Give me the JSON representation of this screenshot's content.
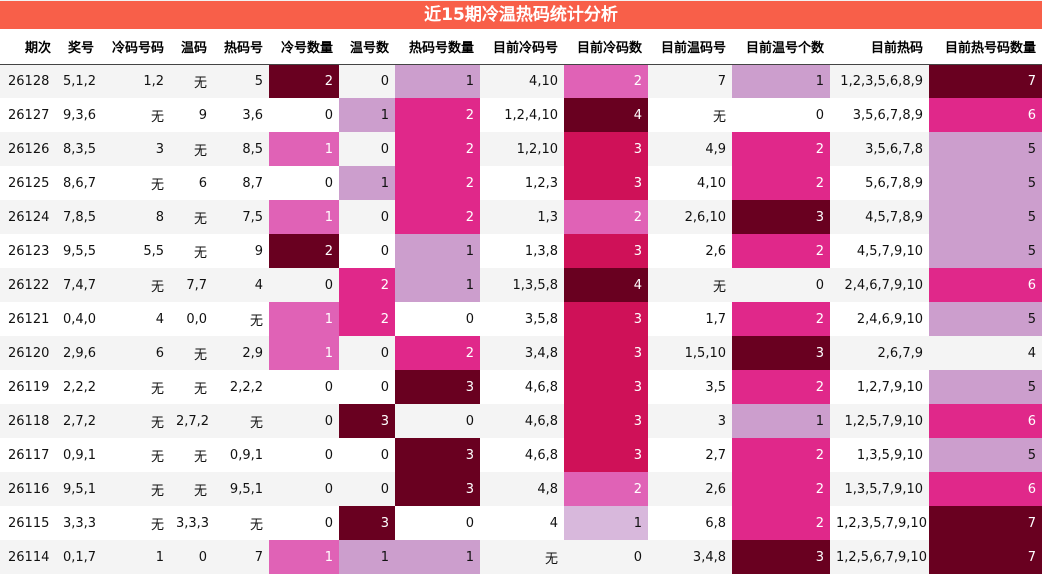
{
  "title": "近15期冷温热码统计分析",
  "colors": {
    "0": "#f7f3f8",
    "1": "#e062b6",
    "2": "#e0288a",
    "3": "#cf1158",
    "4": "#690020",
    "3hi": "#690020",
    "lo": "#d8b8dc",
    "mid": "#cc9ecd"
  },
  "columns": [
    "期次",
    "奖号",
    "冷码号码",
    "温码",
    "热码号",
    "冷号数量",
    "温号数",
    "热码号数量",
    "目前冷码号",
    "目前冷码数",
    "目前温码号",
    "目前温号个数",
    "目前热码",
    "目前热号码数量"
  ],
  "rows": [
    {
      "period": "26128",
      "draw": "5,1,2",
      "cold": "1,2",
      "warm": "无",
      "hot": "5",
      "cold_n": 2,
      "warm_n": 0,
      "hot_n": 1,
      "cur_cold": "4,10",
      "cur_cold_n": 2,
      "cur_warm": "7",
      "cur_warm_n": 1,
      "cur_hot": "1,2,3,5,6,8,9",
      "cur_hot_n": 7
    },
    {
      "period": "26127",
      "draw": "9,3,6",
      "cold": "无",
      "warm": "9",
      "hot": "3,6",
      "cold_n": 0,
      "warm_n": 1,
      "hot_n": 2,
      "cur_cold": "1,2,4,10",
      "cur_cold_n": 4,
      "cur_warm": "无",
      "cur_warm_n": 0,
      "cur_hot": "3,5,6,7,8,9",
      "cur_hot_n": 6
    },
    {
      "period": "26126",
      "draw": "8,3,5",
      "cold": "3",
      "warm": "无",
      "hot": "8,5",
      "cold_n": 1,
      "warm_n": 0,
      "hot_n": 2,
      "cur_cold": "1,2,10",
      "cur_cold_n": 3,
      "cur_warm": "4,9",
      "cur_warm_n": 2,
      "cur_hot": "3,5,6,7,8",
      "cur_hot_n": 5
    },
    {
      "period": "26125",
      "draw": "8,6,7",
      "cold": "无",
      "warm": "6",
      "hot": "8,7",
      "cold_n": 0,
      "warm_n": 1,
      "hot_n": 2,
      "cur_cold": "1,2,3",
      "cur_cold_n": 3,
      "cur_warm": "4,10",
      "cur_warm_n": 2,
      "cur_hot": "5,6,7,8,9",
      "cur_hot_n": 5
    },
    {
      "period": "26124",
      "draw": "7,8,5",
      "cold": "8",
      "warm": "无",
      "hot": "7,5",
      "cold_n": 1,
      "warm_n": 0,
      "hot_n": 2,
      "cur_cold": "1,3",
      "cur_cold_n": 2,
      "cur_warm": "2,6,10",
      "cur_warm_n": 3,
      "cur_hot": "4,5,7,8,9",
      "cur_hot_n": 5
    },
    {
      "period": "26123",
      "draw": "9,5,5",
      "cold": "5,5",
      "warm": "无",
      "hot": "9",
      "cold_n": 2,
      "warm_n": 0,
      "hot_n": 1,
      "cur_cold": "1,3,8",
      "cur_cold_n": 3,
      "cur_warm": "2,6",
      "cur_warm_n": 2,
      "cur_hot": "4,5,7,9,10",
      "cur_hot_n": 5
    },
    {
      "period": "26122",
      "draw": "7,4,7",
      "cold": "无",
      "warm": "7,7",
      "hot": "4",
      "cold_n": 0,
      "warm_n": 2,
      "hot_n": 1,
      "cur_cold": "1,3,5,8",
      "cur_cold_n": 4,
      "cur_warm": "无",
      "cur_warm_n": 0,
      "cur_hot": "2,4,6,7,9,10",
      "cur_hot_n": 6
    },
    {
      "period": "26121",
      "draw": "0,4,0",
      "cold": "4",
      "warm": "0,0",
      "hot": "无",
      "cold_n": 1,
      "warm_n": 2,
      "hot_n": 0,
      "cur_cold": "3,5,8",
      "cur_cold_n": 3,
      "cur_warm": "1,7",
      "cur_warm_n": 2,
      "cur_hot": "2,4,6,9,10",
      "cur_hot_n": 5
    },
    {
      "period": "26120",
      "draw": "2,9,6",
      "cold": "6",
      "warm": "无",
      "hot": "2,9",
      "cold_n": 1,
      "warm_n": 0,
      "hot_n": 2,
      "cur_cold": "3,4,8",
      "cur_cold_n": 3,
      "cur_warm": "1,5,10",
      "cur_warm_n": 3,
      "cur_hot": "2,6,7,9",
      "cur_hot_n": 4
    },
    {
      "period": "26119",
      "draw": "2,2,2",
      "cold": "无",
      "warm": "无",
      "hot": "2,2,2",
      "cold_n": 0,
      "warm_n": 0,
      "hot_n": 3,
      "cur_cold": "4,6,8",
      "cur_cold_n": 3,
      "cur_warm": "3,5",
      "cur_warm_n": 2,
      "cur_hot": "1,2,7,9,10",
      "cur_hot_n": 5
    },
    {
      "period": "26118",
      "draw": "2,7,2",
      "cold": "无",
      "warm": "2,7,2",
      "hot": "无",
      "cold_n": 0,
      "warm_n": 3,
      "hot_n": 0,
      "cur_cold": "4,6,8",
      "cur_cold_n": 3,
      "cur_warm": "3",
      "cur_warm_n": 1,
      "cur_hot": "1,2,5,7,9,10",
      "cur_hot_n": 6
    },
    {
      "period": "26117",
      "draw": "0,9,1",
      "cold": "无",
      "warm": "无",
      "hot": "0,9,1",
      "cold_n": 0,
      "warm_n": 0,
      "hot_n": 3,
      "cur_cold": "4,6,8",
      "cur_cold_n": 3,
      "cur_warm": "2,7",
      "cur_warm_n": 2,
      "cur_hot": "1,3,5,9,10",
      "cur_hot_n": 5
    },
    {
      "period": "26116",
      "draw": "9,5,1",
      "cold": "无",
      "warm": "无",
      "hot": "9,5,1",
      "cold_n": 0,
      "warm_n": 0,
      "hot_n": 3,
      "cur_cold": "4,8",
      "cur_cold_n": 2,
      "cur_warm": "2,6",
      "cur_warm_n": 2,
      "cur_hot": "1,3,5,7,9,10",
      "cur_hot_n": 6
    },
    {
      "period": "26115",
      "draw": "3,3,3",
      "cold": "无",
      "warm": "3,3,3",
      "hot": "无",
      "cold_n": 0,
      "warm_n": 3,
      "hot_n": 0,
      "cur_cold": "4",
      "cur_cold_n": 1,
      "cur_warm": "6,8",
      "cur_warm_n": 2,
      "cur_hot": "1,2,3,5,7,9,10",
      "cur_hot_n": 7
    },
    {
      "period": "26114",
      "draw": "0,1,7",
      "cold": "1",
      "warm": "0",
      "hot": "7",
      "cold_n": 1,
      "warm_n": 1,
      "hot_n": 1,
      "cur_cold": "无",
      "cur_cold_n": 0,
      "cur_warm": "3,4,8",
      "cur_warm_n": 3,
      "cur_hot": "1,2,5,6,7,9,10",
      "cur_hot_n": 7
    }
  ],
  "chart_data": {
    "type": "table",
    "title": "近15期冷温热码统计分析",
    "columns": [
      "期次",
      "奖号",
      "冷码号码",
      "温码",
      "热码号",
      "冷号数量",
      "温号数",
      "热码号数量",
      "目前冷码号",
      "目前冷码数",
      "目前温码号",
      "目前温号个数",
      "目前热码",
      "目前热号码数量"
    ],
    "note": "heatmap-style colored count columns"
  }
}
